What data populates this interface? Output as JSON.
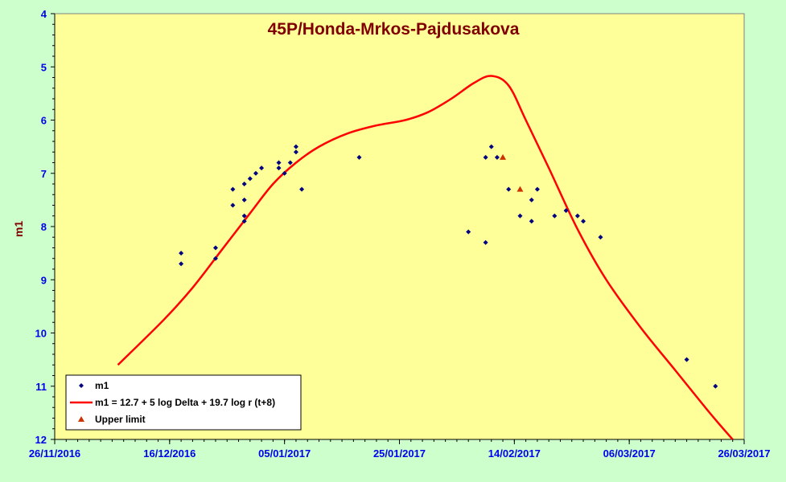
{
  "chart_data": {
    "type": "scatter",
    "title": "45P/Honda-Mrkos-Pajdusakova",
    "xlabel": "",
    "ylabel": "m1",
    "x_axis": {
      "type": "date",
      "range": [
        "2016-11-26",
        "2017-03-26"
      ],
      "tick_labels": [
        "26/11/2016",
        "16/12/2016",
        "05/01/2017",
        "25/01/2017",
        "14/02/2017",
        "06/03/2017",
        "26/03/2017"
      ],
      "tick_dates": [
        "2016-11-26",
        "2016-12-16",
        "2017-01-05",
        "2017-01-25",
        "2017-02-14",
        "2017-03-06",
        "2017-03-26"
      ]
    },
    "y_axis": {
      "range": [
        4,
        12
      ],
      "inverted": true,
      "tick_labels": [
        "4",
        "5",
        "6",
        "7",
        "8",
        "9",
        "10",
        "11",
        "12"
      ],
      "tick_values": [
        4,
        5,
        6,
        7,
        8,
        9,
        10,
        11,
        12
      ]
    },
    "grid": false,
    "legend_position": "bottom-left",
    "colors": {
      "plot_background": "#ffff99",
      "page_background": "#ccffcc",
      "observed_marker": "#000080",
      "model_line": "#ff0000",
      "upper_limit_marker": "#cc3300"
    },
    "legend": [
      {
        "label": "m1",
        "symbol": "diamond"
      },
      {
        "label": "m1 = 12.7 + 5 log Delta + 19.7 log r (t+8)",
        "symbol": "line"
      },
      {
        "label": "Upper limit",
        "symbol": "triangle"
      }
    ],
    "series": [
      {
        "name": "m1",
        "marker": "diamond",
        "points": [
          {
            "x": "2016-12-18",
            "y": 8.5
          },
          {
            "x": "2016-12-18",
            "y": 8.7
          },
          {
            "x": "2016-12-24",
            "y": 8.4
          },
          {
            "x": "2016-12-24",
            "y": 8.6
          },
          {
            "x": "2016-12-27",
            "y": 7.3
          },
          {
            "x": "2016-12-27",
            "y": 7.6
          },
          {
            "x": "2016-12-29",
            "y": 7.2
          },
          {
            "x": "2016-12-29",
            "y": 7.5
          },
          {
            "x": "2016-12-29",
            "y": 7.8
          },
          {
            "x": "2016-12-29",
            "y": 7.9
          },
          {
            "x": "2016-12-30",
            "y": 7.1
          },
          {
            "x": "2016-12-31",
            "y": 7.0
          },
          {
            "x": "2017-01-01",
            "y": 6.9
          },
          {
            "x": "2017-01-04",
            "y": 6.8
          },
          {
            "x": "2017-01-04",
            "y": 6.9
          },
          {
            "x": "2017-01-05",
            "y": 7.0
          },
          {
            "x": "2017-01-06",
            "y": 6.8
          },
          {
            "x": "2017-01-07",
            "y": 6.5
          },
          {
            "x": "2017-01-07",
            "y": 6.6
          },
          {
            "x": "2017-01-08",
            "y": 7.3
          },
          {
            "x": "2017-01-18",
            "y": 6.7
          },
          {
            "x": "2017-02-06",
            "y": 8.1
          },
          {
            "x": "2017-02-09",
            "y": 6.7
          },
          {
            "x": "2017-02-09",
            "y": 8.3
          },
          {
            "x": "2017-02-10",
            "y": 6.5
          },
          {
            "x": "2017-02-11",
            "y": 6.7
          },
          {
            "x": "2017-02-13",
            "y": 7.3
          },
          {
            "x": "2017-02-15",
            "y": 7.8
          },
          {
            "x": "2017-02-17",
            "y": 7.5
          },
          {
            "x": "2017-02-17",
            "y": 7.9
          },
          {
            "x": "2017-02-18",
            "y": 7.3
          },
          {
            "x": "2017-02-21",
            "y": 7.8
          },
          {
            "x": "2017-02-23",
            "y": 7.7
          },
          {
            "x": "2017-02-25",
            "y": 7.8
          },
          {
            "x": "2017-02-26",
            "y": 7.9
          },
          {
            "x": "2017-03-01",
            "y": 8.2
          },
          {
            "x": "2017-03-16",
            "y": 10.5
          },
          {
            "x": "2017-03-21",
            "y": 11.0
          }
        ]
      },
      {
        "name": "m1 = 12.7 + 5 log Delta + 19.7 log r (t+8)",
        "marker": "line",
        "points": [
          {
            "x": "2016-12-07",
            "y": 10.6
          },
          {
            "x": "2016-12-15",
            "y": 9.75
          },
          {
            "x": "2016-12-20",
            "y": 9.15
          },
          {
            "x": "2016-12-25",
            "y": 8.45
          },
          {
            "x": "2016-12-30",
            "y": 7.75
          },
          {
            "x": "2017-01-03",
            "y": 7.2
          },
          {
            "x": "2017-01-07",
            "y": 6.8
          },
          {
            "x": "2017-01-11",
            "y": 6.5
          },
          {
            "x": "2017-01-16",
            "y": 6.25
          },
          {
            "x": "2017-01-21",
            "y": 6.1
          },
          {
            "x": "2017-01-26",
            "y": 6.0
          },
          {
            "x": "2017-01-30",
            "y": 5.85
          },
          {
            "x": "2017-02-03",
            "y": 5.6
          },
          {
            "x": "2017-02-07",
            "y": 5.3
          },
          {
            "x": "2017-02-10",
            "y": 5.17
          },
          {
            "x": "2017-02-13",
            "y": 5.35
          },
          {
            "x": "2017-02-16",
            "y": 6.0
          },
          {
            "x": "2017-02-20",
            "y": 6.9
          },
          {
            "x": "2017-02-25",
            "y": 8.05
          },
          {
            "x": "2017-03-02",
            "y": 9.0
          },
          {
            "x": "2017-03-08",
            "y": 9.9
          },
          {
            "x": "2017-03-14",
            "y": 10.7
          },
          {
            "x": "2017-03-20",
            "y": 11.5
          },
          {
            "x": "2017-03-24",
            "y": 12.0
          }
        ]
      },
      {
        "name": "Upper limit",
        "marker": "triangle",
        "points": [
          {
            "x": "2017-02-12",
            "y": 6.7
          },
          {
            "x": "2017-02-15",
            "y": 7.3
          }
        ]
      }
    ]
  }
}
